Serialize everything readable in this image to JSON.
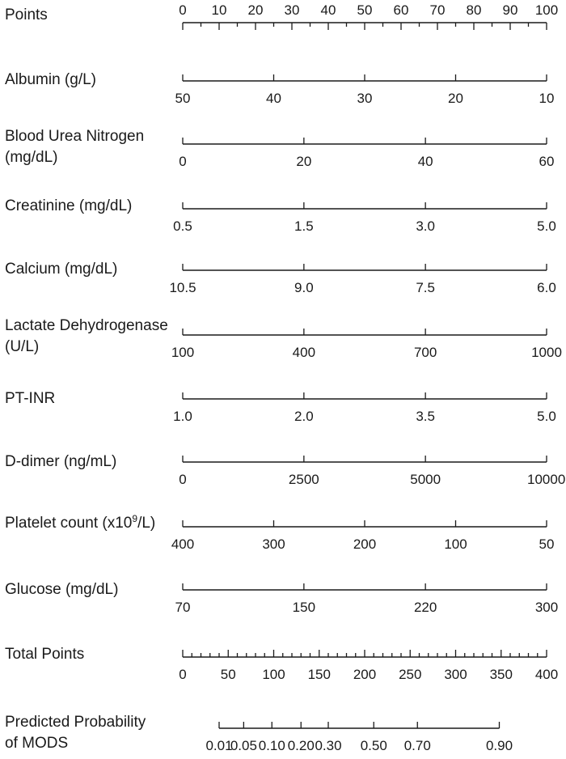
{
  "chart_data": {
    "type": "nomogram",
    "title": "",
    "points": {
      "label": "Points",
      "min": 0,
      "max": 100,
      "major_ticks": [
        0,
        10,
        20,
        30,
        40,
        50,
        60,
        70,
        80,
        90,
        100
      ],
      "minor_step": 5
    },
    "predictors": [
      {
        "label_lines": [
          "Albumin (g/L)"
        ],
        "ticks": [
          {
            "label": "50",
            "points": 0
          },
          {
            "label": "40",
            "points": 25
          },
          {
            "label": "30",
            "points": 50
          },
          {
            "label": "20",
            "points": 75
          },
          {
            "label": "10",
            "points": 100
          }
        ]
      },
      {
        "label_lines": [
          "Blood Urea Nitrogen",
          "(mg/dL)"
        ],
        "ticks": [
          {
            "label": "0",
            "points": 0
          },
          {
            "label": "20",
            "points": 33.3
          },
          {
            "label": "40",
            "points": 66.7
          },
          {
            "label": "60",
            "points": 100
          }
        ]
      },
      {
        "label_lines": [
          "Creatinine (mg/dL)"
        ],
        "ticks": [
          {
            "label": "0.5",
            "points": 0
          },
          {
            "label": "1.5",
            "points": 33.3
          },
          {
            "label": "3.0",
            "points": 66.7
          },
          {
            "label": "5.0",
            "points": 100
          }
        ]
      },
      {
        "label_lines": [
          "Calcium (mg/dL)"
        ],
        "ticks": [
          {
            "label": "10.5",
            "points": 0
          },
          {
            "label": "9.0",
            "points": 33.3
          },
          {
            "label": "7.5",
            "points": 66.7
          },
          {
            "label": "6.0",
            "points": 100
          }
        ]
      },
      {
        "label_lines": [
          "Lactate Dehydrogenase",
          "(U/L)"
        ],
        "ticks": [
          {
            "label": "100",
            "points": 0
          },
          {
            "label": "400",
            "points": 33.3
          },
          {
            "label": "700",
            "points": 66.7
          },
          {
            "label": "1000",
            "points": 100
          }
        ]
      },
      {
        "label_lines": [
          "PT-INR"
        ],
        "ticks": [
          {
            "label": "1.0",
            "points": 0
          },
          {
            "label": "2.0",
            "points": 33.3
          },
          {
            "label": "3.5",
            "points": 66.7
          },
          {
            "label": "5.0",
            "points": 100
          }
        ]
      },
      {
        "label_lines": [
          "D-dimer (ng/mL)"
        ],
        "ticks": [
          {
            "label": "0",
            "points": 0
          },
          {
            "label": "2500",
            "points": 33.3
          },
          {
            "label": "5000",
            "points": 66.7
          },
          {
            "label": "10000",
            "points": 100
          }
        ]
      },
      {
        "label_lines": [
          "Platelet count (x10^9/L)"
        ],
        "ticks": [
          {
            "label": "400",
            "points": 0
          },
          {
            "label": "300",
            "points": 25
          },
          {
            "label": "200",
            "points": 50
          },
          {
            "label": "100",
            "points": 75
          },
          {
            "label": "50",
            "points": 100
          }
        ]
      },
      {
        "label_lines": [
          "Glucose (mg/dL)"
        ],
        "ticks": [
          {
            "label": "70",
            "points": 0
          },
          {
            "label": "150",
            "points": 33.3
          },
          {
            "label": "220",
            "points": 66.7
          },
          {
            "label": "300",
            "points": 100
          }
        ]
      }
    ],
    "total_points": {
      "label": "Total Points",
      "min": 0,
      "max": 400,
      "major_ticks": [
        0,
        50,
        100,
        150,
        200,
        250,
        300,
        350,
        400
      ],
      "minor_step": 10
    },
    "probability": {
      "label_lines": [
        "Predicted Probability",
        "of MODS"
      ],
      "ticks": [
        {
          "label": "0.01",
          "total_points": 40
        },
        {
          "label": "0.05",
          "total_points": 67
        },
        {
          "label": "0.10",
          "total_points": 98
        },
        {
          "label": "0.20",
          "total_points": 130
        },
        {
          "label": "0.30",
          "total_points": 160
        },
        {
          "label": "0.50",
          "total_points": 210
        },
        {
          "label": "0.70",
          "total_points": 258
        },
        {
          "label": "0.90",
          "total_points": 348
        }
      ]
    }
  }
}
